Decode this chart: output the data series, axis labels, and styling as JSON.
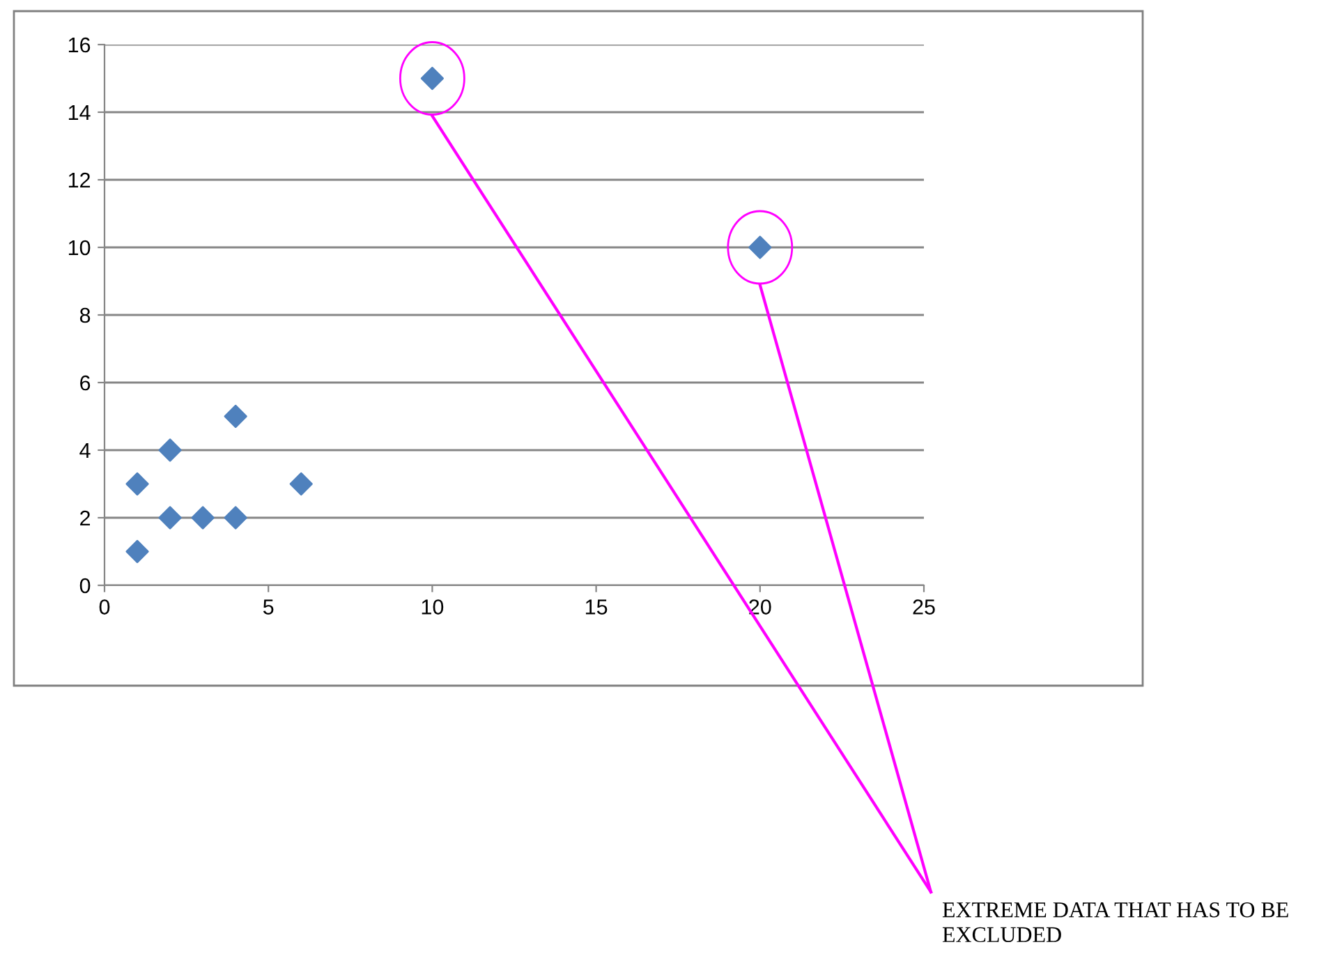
{
  "chart_data": {
    "type": "scatter",
    "x": [
      1,
      1,
      2,
      2,
      3,
      4,
      4,
      6,
      10,
      20
    ],
    "values": [
      3,
      1,
      4,
      2,
      2,
      5,
      2,
      3,
      15,
      10
    ],
    "color": "#4f81bd",
    "marker": "diamond",
    "xlim": [
      0,
      25
    ],
    "xticks": [
      0,
      5,
      10,
      15,
      20,
      25
    ],
    "ylim": [
      0,
      16
    ],
    "yticks": [
      0,
      2,
      4,
      6,
      8,
      10,
      12,
      14,
      16
    ],
    "grid": "y",
    "legend": false,
    "annotations": [
      "EXTREME DATA THAT HAS TO BE EXCLUDED"
    ]
  }
}
